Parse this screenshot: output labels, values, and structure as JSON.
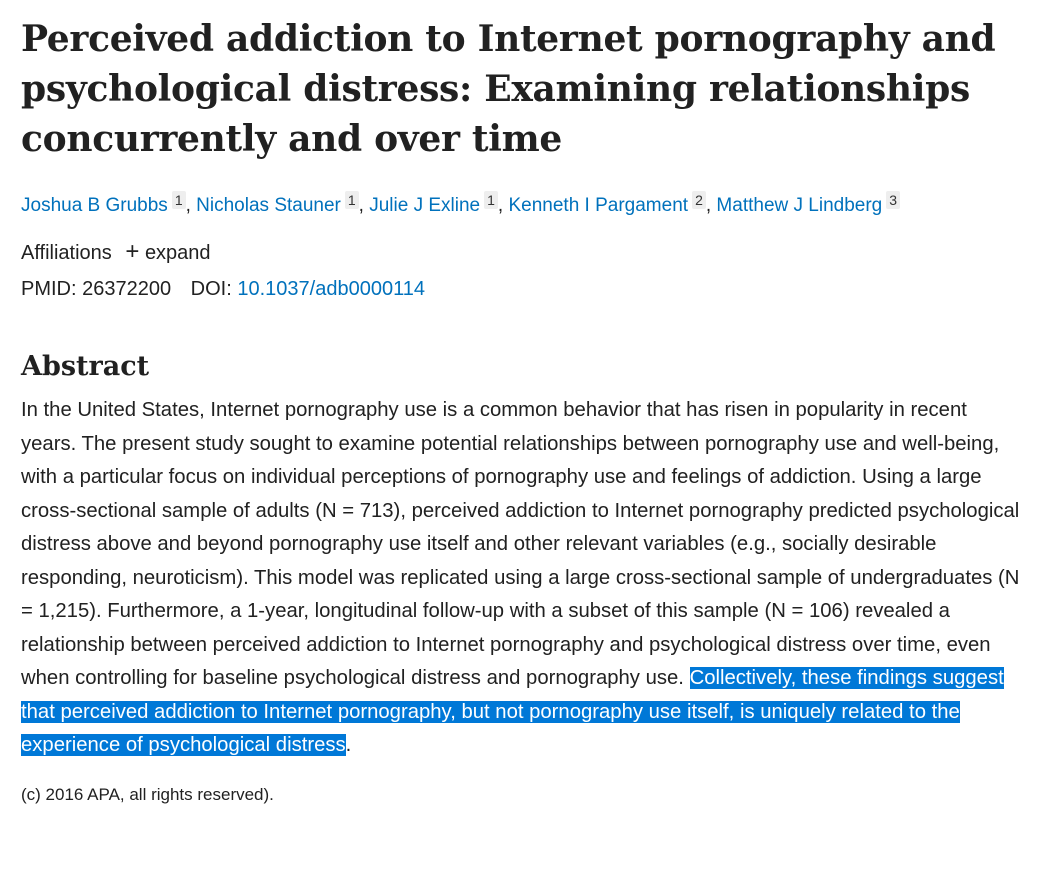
{
  "title": "Perceived addiction to Internet pornography and psychological distress: Examining relationships concurrently and over time",
  "authors": [
    {
      "name": "Joshua B Grubbs",
      "aff": "1"
    },
    {
      "name": "Nicholas Stauner",
      "aff": "1"
    },
    {
      "name": "Julie J Exline",
      "aff": "1"
    },
    {
      "name": "Kenneth I Pargament",
      "aff": "2"
    },
    {
      "name": "Matthew J Lindberg",
      "aff": "3"
    }
  ],
  "affiliations": {
    "label": "Affiliations",
    "expand_icon": "plus-icon",
    "expand_label": "expand"
  },
  "ids": {
    "pmid_label": "PMID:",
    "pmid": "26372200",
    "doi_label": "DOI:",
    "doi": "10.1037/adb0000114"
  },
  "abstract": {
    "heading": "Abstract",
    "text": "In the United States, Internet pornography use is a common behavior that has risen in popularity in recent years. The present study sought to examine potential relationships between pornography use and well-being, with a particular focus on individual perceptions of pornography use and feelings of addiction. Using a large cross-sectional sample of adults (N = 713), perceived addiction to Internet pornography predicted psychological distress above and beyond pornography use itself and other relevant variables (e.g., socially desirable responding, neuroticism). This model was replicated using a large cross-sectional sample of undergraduates (N = 1,215). Furthermore, a 1-year, longitudinal follow-up with a subset of this sample (N = 106) revealed a relationship between perceived addiction to Internet pornography and psychological distress over time, even when controlling for baseline psychological distress and pornography use. ",
    "highlighted": "Collectively, these findings suggest that perceived addiction to Internet pornography, but not pornography use itself, is uniquely related to the experience of psychological distress",
    "end": "."
  },
  "copyright": "(c) 2016 APA, all rights reserved).",
  "colors": {
    "link": "#0071bc",
    "selection": "#0078d7"
  }
}
